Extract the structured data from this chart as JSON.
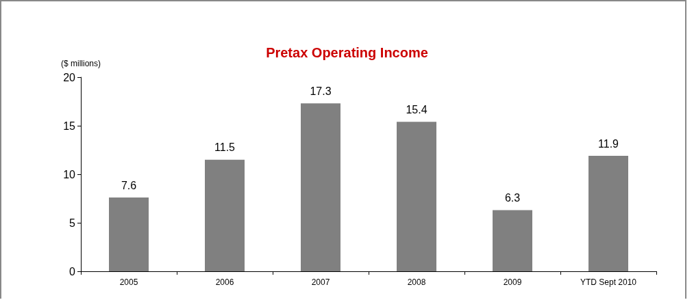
{
  "chart_data": {
    "type": "bar",
    "title": "Pretax Operating Income",
    "ylabel": "($ millions)",
    "categories": [
      "2005",
      "2006",
      "2007",
      "2008",
      "2009",
      "YTD Sept 2010"
    ],
    "values": [
      7.6,
      11.5,
      17.3,
      15.4,
      6.3,
      11.9
    ],
    "color": "#808080",
    "ylim": [
      0,
      20
    ],
    "yticks": [
      0,
      5,
      10,
      15,
      20
    ],
    "data_labels": true,
    "grid": false
  }
}
